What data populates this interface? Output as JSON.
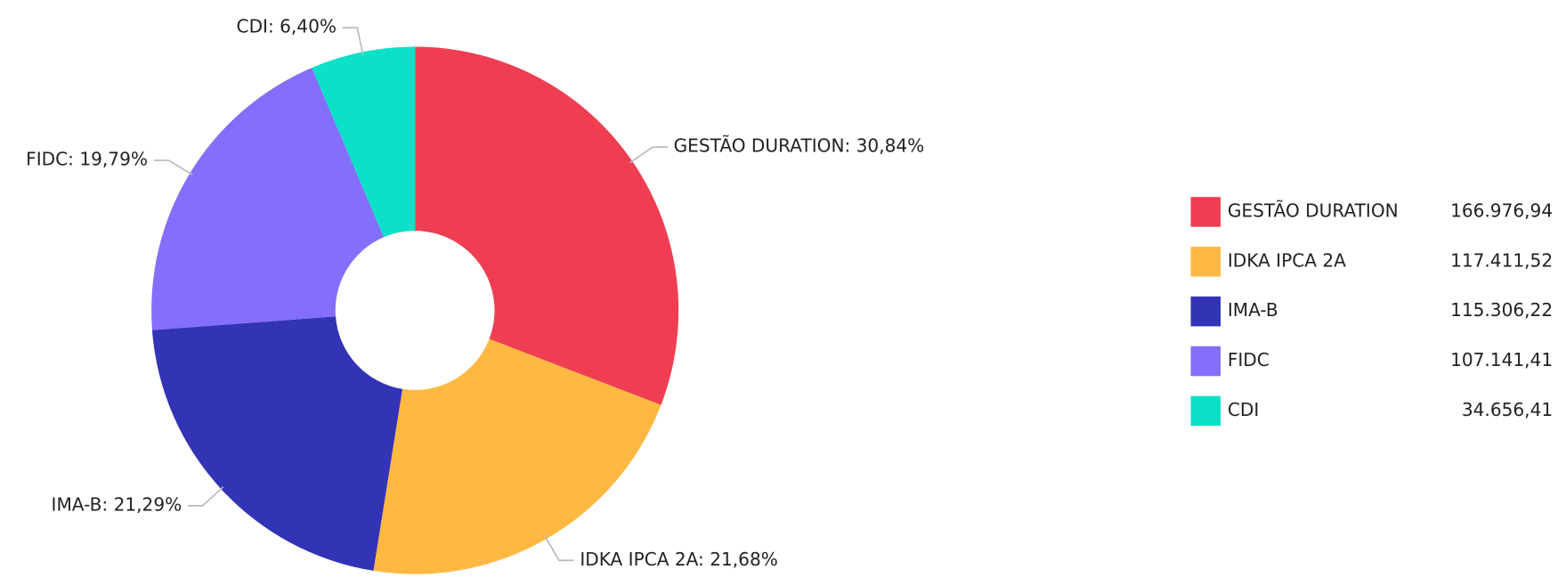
{
  "chart_data": {
    "type": "pie",
    "categories": [
      "GESTÃO DURATION",
      "IDKA IPCA 2A",
      "IMA-B",
      "FIDC",
      "CDI"
    ],
    "values": [
      30.84,
      21.68,
      21.29,
      19.79,
      6.4
    ],
    "value_labels": [
      "GESTÃO DURATION: 30,84%",
      "IDKA IPCA 2A: 21,68%",
      "IMA-B: 21,29%",
      "FIDC: 19,79%",
      "CDI: 6,40%"
    ],
    "colors": [
      "#ef3e52",
      "#ffb942",
      "#3333b5",
      "#836ffb",
      "#0be0c8"
    ],
    "legend_values": [
      "166.976,94",
      "117.411,52",
      "115.306,22",
      "107.141,41",
      "34.656,41"
    ],
    "donut": true,
    "legend": "right"
  }
}
